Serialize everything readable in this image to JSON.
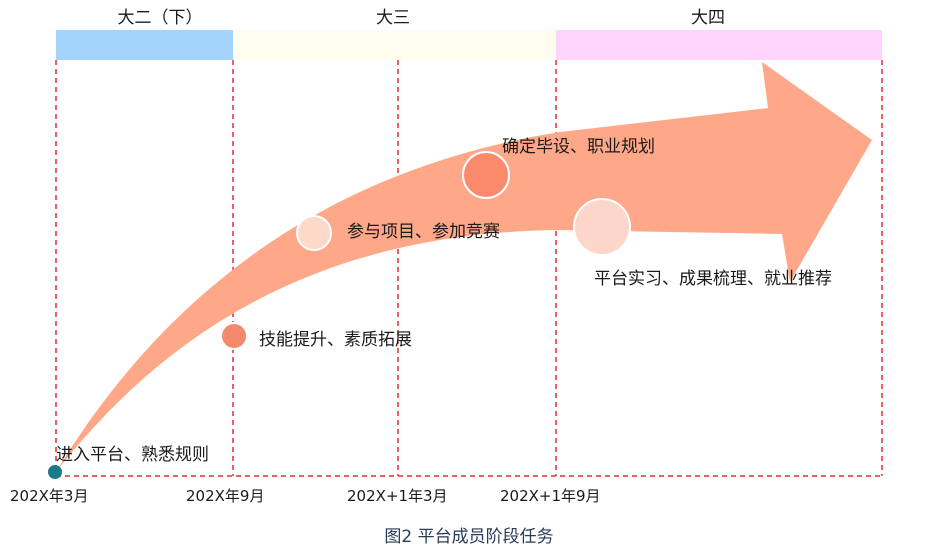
{
  "years": [
    {
      "label": "大二（下）",
      "color": "#a3d4fb"
    },
    {
      "label": "大三",
      "color": "#fffdf0"
    },
    {
      "label": "大四",
      "color": "#ffd4fd"
    }
  ],
  "milestones": [
    {
      "label": "进入平台、熟悉规则",
      "color": "#1a7a8a"
    },
    {
      "label": "技能提升、素质拓展",
      "color": "#f48a6c"
    },
    {
      "label": "参与项目、参加竞赛",
      "color": "#fcd9c8"
    },
    {
      "label": "确定毕设、职业规划",
      "color": "#fb8a6c"
    },
    {
      "label": "平台实习、成果梳理、就业推荐",
      "color": "#fcd6c8"
    }
  ],
  "dates": [
    "202X年3月",
    "202X年9月",
    "202X+1年3月",
    "202X+1年9月"
  ],
  "caption": "图2 平台成员阶段任务",
  "colors": {
    "arrow": "#ffa889",
    "dashed": "#e03030"
  }
}
